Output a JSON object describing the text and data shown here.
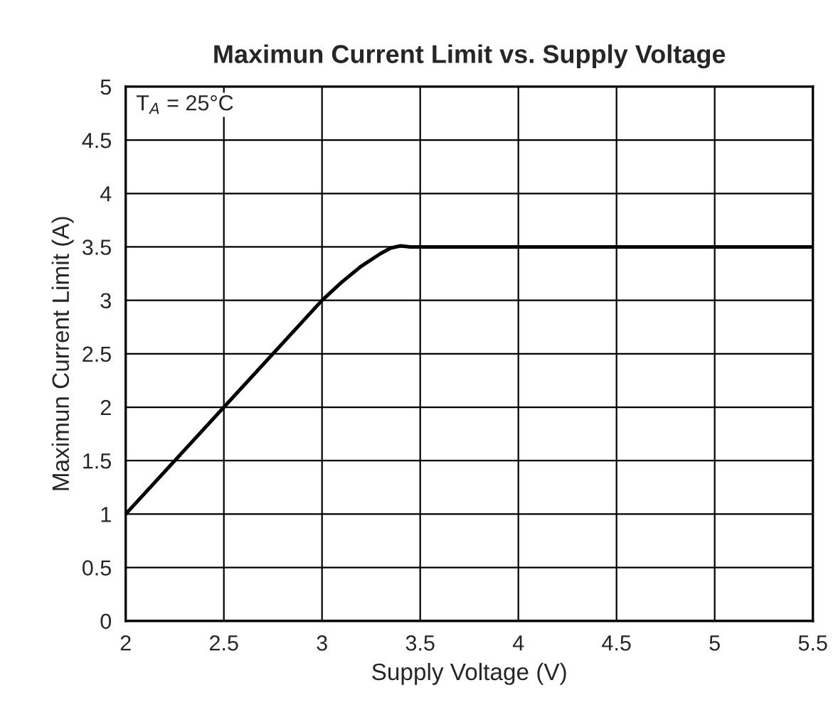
{
  "chart_data": {
    "type": "line",
    "title": "Maximun Current Limit vs. Supply Voltage",
    "xlabel": "Supply Voltage (V)",
    "ylabel": "Maximun Current Limit (A)",
    "annotations": [
      "T$_{A}$ = 25°C"
    ],
    "x": [
      2,
      2.5,
      3,
      3.1,
      3.2,
      3.3,
      3.35,
      3.4,
      3.45,
      5.5
    ],
    "series": [
      {
        "color": "#000000",
        "values": [
          1,
          2,
          3,
          3.17,
          3.32,
          3.44,
          3.49,
          3.51,
          3.5,
          3.5
        ]
      }
    ],
    "xlim": [
      2,
      5.5
    ],
    "xticks": [
      2,
      2.5,
      3,
      3.5,
      4,
      4.5,
      5,
      5.5
    ],
    "ylim": [
      0,
      5
    ],
    "yticks": [
      0,
      0.5,
      1,
      1.5,
      2,
      2.5,
      3,
      3.5,
      4,
      4.5,
      5
    ],
    "grid": true,
    "marker": "none",
    "line_style": "solid"
  }
}
